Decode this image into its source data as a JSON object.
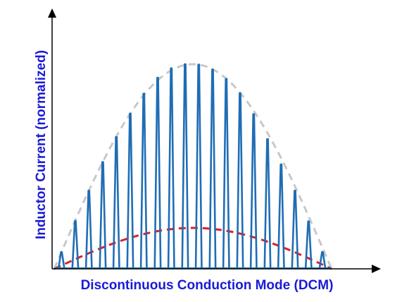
{
  "chart_data": {
    "type": "line",
    "title": "",
    "xlabel": "Discontinuous Conduction Mode (DCM)",
    "ylabel": "Inductor Current (normalized)",
    "xlim": [
      0,
      1
    ],
    "ylim": [
      0,
      1.1
    ],
    "grid": false,
    "legend": "none",
    "colors": {
      "pulses": "#1f6db5",
      "peak_envelope": "#c8c8c8",
      "average_envelope": "#e02020",
      "axis_labels": "#1a1ad6",
      "axes": "#000000"
    },
    "series": [
      {
        "style": "dashed",
        "color_key": "peak_envelope",
        "shape": "half-sine",
        "peak": 1.0,
        "x": [
          0,
          0.125,
          0.25,
          0.375,
          0.5,
          0.625,
          0.75,
          0.875,
          1
        ],
        "values": [
          0,
          0.38,
          0.71,
          0.92,
          1.0,
          0.92,
          0.71,
          0.38,
          0
        ]
      },
      {
        "style": "dashed",
        "color_key": "average_envelope",
        "shape": "half-sine",
        "peak": 0.2,
        "x": [
          0,
          0.125,
          0.25,
          0.375,
          0.5,
          0.625,
          0.75,
          0.875,
          1
        ],
        "values": [
          0,
          0.077,
          0.141,
          0.185,
          0.2,
          0.185,
          0.141,
          0.077,
          0
        ]
      },
      {
        "style": "triangular-pulses",
        "color_key": "pulses",
        "x": [
          0.026,
          0.076,
          0.125,
          0.175,
          0.224,
          0.274,
          0.323,
          0.373,
          0.422,
          0.472,
          0.521,
          0.571,
          0.62,
          0.67,
          0.719,
          0.769,
          0.818,
          0.868,
          0.917,
          0.967
        ],
        "values": [
          0.082,
          0.234,
          0.382,
          0.522,
          0.644,
          0.758,
          0.856,
          0.934,
          0.98,
          1.0,
          0.998,
          0.974,
          0.928,
          0.858,
          0.756,
          0.634,
          0.51,
          0.382,
          0.232,
          0.082
        ]
      }
    ]
  }
}
